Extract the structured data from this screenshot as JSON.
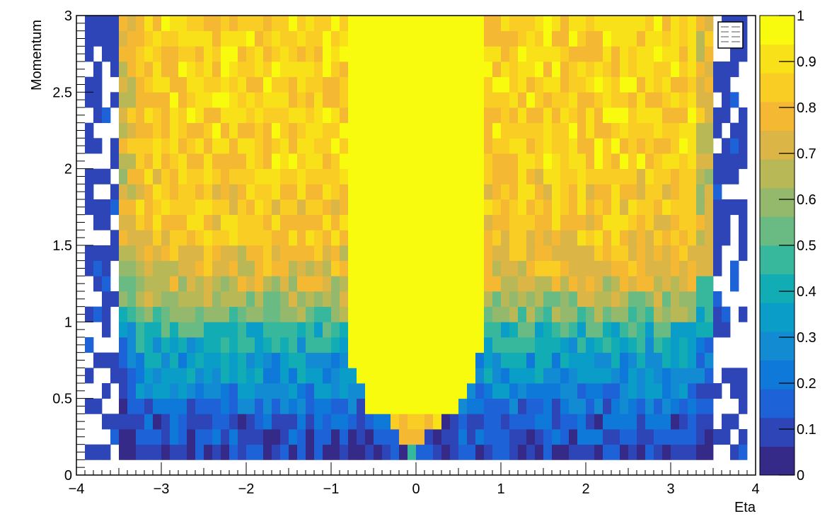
{
  "chart_data": {
    "type": "heatmap",
    "title": "",
    "xlabel": "Eta",
    "ylabel": "Momentum",
    "xlim": [
      -4,
      4
    ],
    "ylim": [
      0,
      3
    ],
    "x_ticks": [
      "−4",
      "−3",
      "−2",
      "−1",
      "0",
      "1",
      "2",
      "3",
      "4"
    ],
    "y_ticks": [
      "0",
      "0.5",
      "1",
      "1.5",
      "2",
      "2.5",
      "3"
    ],
    "colorbar": {
      "range": [
        0,
        1
      ],
      "ticks": [
        "0",
        "0.1",
        "0.2",
        "0.3",
        "0.4",
        "0.5",
        "0.6",
        "0.7",
        "0.8",
        "0.9",
        "1"
      ],
      "palette": [
        "#352a87",
        "#2d45b7",
        "#1e62d8",
        "#0f79d9",
        "#138bd3",
        "#0a9dc8",
        "#12acb4",
        "#37b89d",
        "#69ba83",
        "#95b96c",
        "#b9b856",
        "#dbb545",
        "#f4b832",
        "#f9cd24",
        "#f8e119",
        "#f9fb0e"
      ]
    },
    "binning": {
      "x_bins": 80,
      "x_range": [
        -4,
        4
      ],
      "y_bins": 30,
      "y_range": [
        0,
        3
      ]
    },
    "efficiency_rows": [
      {
        "p_min": 0.1,
        "p_max": 0.2,
        "inner_eta": 0.05,
        "center": 0.55,
        "edge": 0.08
      },
      {
        "p_min": 0.2,
        "p_max": 0.3,
        "inner_eta": 0.15,
        "center": 0.9,
        "edge": 0.12
      },
      {
        "p_min": 0.3,
        "p_max": 0.4,
        "inner_eta": 0.3,
        "center": 0.95,
        "edge": 0.15
      },
      {
        "p_min": 0.4,
        "p_max": 0.5,
        "inner_eta": 0.55,
        "center": 1.0,
        "edge": 0.2
      },
      {
        "p_min": 0.5,
        "p_max": 0.6,
        "inner_eta": 0.6,
        "center": 1.0,
        "edge": 0.25
      },
      {
        "p_min": 0.6,
        "p_max": 0.7,
        "inner_eta": 0.7,
        "center": 1.0,
        "edge": 0.3
      },
      {
        "p_min": 0.7,
        "p_max": 0.8,
        "inner_eta": 0.75,
        "center": 1.0,
        "edge": 0.33
      },
      {
        "p_min": 0.8,
        "p_max": 0.9,
        "inner_eta": 0.8,
        "center": 1.0,
        "edge": 0.38
      },
      {
        "p_min": 0.9,
        "p_max": 1.0,
        "inner_eta": 0.8,
        "center": 1.0,
        "edge": 0.45
      },
      {
        "p_min": 1.0,
        "p_max": 1.1,
        "inner_eta": 0.82,
        "center": 1.0,
        "edge": 0.55
      },
      {
        "p_min": 1.1,
        "p_max": 1.2,
        "inner_eta": 0.82,
        "center": 1.0,
        "edge": 0.62
      },
      {
        "p_min": 1.2,
        "p_max": 1.3,
        "inner_eta": 0.82,
        "center": 1.0,
        "edge": 0.7
      },
      {
        "p_min": 1.3,
        "p_max": 1.4,
        "inner_eta": 0.82,
        "center": 1.0,
        "edge": 0.75
      },
      {
        "p_min": 1.4,
        "p_max": 1.5,
        "inner_eta": 0.82,
        "center": 1.0,
        "edge": 0.78
      },
      {
        "p_min": 1.5,
        "p_max": 2.0,
        "inner_eta": 0.82,
        "center": 1.0,
        "edge": 0.82
      },
      {
        "p_min": 2.0,
        "p_max": 3.0,
        "inner_eta": 0.82,
        "center": 1.0,
        "edge": 0.86
      }
    ],
    "acceptance": {
      "eta_min": -3.5,
      "eta_max": 3.5
    },
    "legend": {
      "placement": "top-right",
      "entries": 4
    }
  }
}
